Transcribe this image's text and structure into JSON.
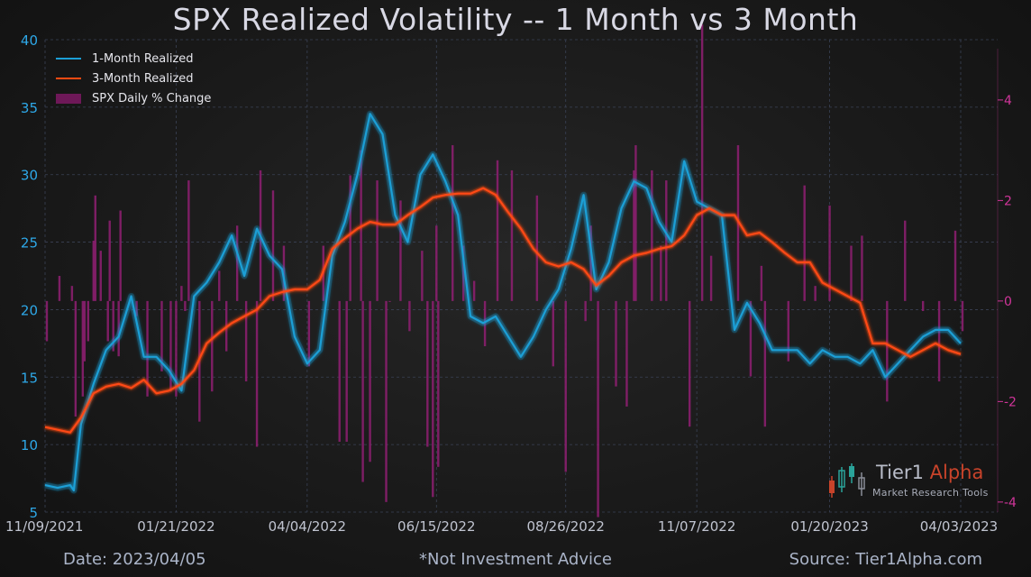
{
  "header": {
    "title": "SPX Realized Volatility -- 1 Month vs 3 Month"
  },
  "footer": {
    "date": "Date: 2023/04/05",
    "note": "*Not Investment Advice",
    "source": "Source: Tier1Alpha.com"
  },
  "brand": {
    "name_part1": "Tier1",
    "name_part2": "Alpha",
    "tagline": "Market Research Tools"
  },
  "colors": {
    "one_month": "#1b9fd6",
    "three_month": "#ff4a12",
    "daily_change": "#8a1f6e",
    "left_axis": "#2ea8e8",
    "right_axis": "#d0359a"
  },
  "chart_data": {
    "type": "line",
    "title": "SPX Realized Volatility -- 1 Month vs 3 Month",
    "legend": {
      "placement": "top-left",
      "entries": [
        "1-Month Realized",
        "3-Month Realized",
        "SPX Daily % Change"
      ]
    },
    "x_tick_labels": [
      "11/09/2021",
      "01/21/2022",
      "04/04/2022",
      "06/15/2022",
      "08/26/2022",
      "11/07/2022",
      "01/20/2023",
      "04/03/2023"
    ],
    "y_left": {
      "min": 5,
      "max": 40,
      "ticks": [
        "5",
        "10",
        "15",
        "20",
        "25",
        "30",
        "35",
        "40"
      ]
    },
    "y_right": {
      "min": -4.2,
      "max": 5.2,
      "ticks": [
        "-4",
        "-2",
        "0",
        "2",
        "4"
      ]
    },
    "grid": true,
    "series": [
      {
        "name": "1-Month Realized",
        "axis": "left",
        "x": [
          "2021-11-09",
          "2021-11-16",
          "2021-11-23",
          "2021-11-25",
          "2021-11-29",
          "2021-12-06",
          "2021-12-13",
          "2021-12-20",
          "2021-12-27",
          "2022-01-03",
          "2022-01-10",
          "2022-01-17",
          "2022-01-24",
          "2022-01-31",
          "2022-02-07",
          "2022-02-14",
          "2022-02-21",
          "2022-02-28",
          "2022-03-07",
          "2022-03-14",
          "2022-03-21",
          "2022-03-28",
          "2022-04-04",
          "2022-04-11",
          "2022-04-18",
          "2022-04-25",
          "2022-05-02",
          "2022-05-09",
          "2022-05-16",
          "2022-05-23",
          "2022-05-30",
          "2022-06-06",
          "2022-06-13",
          "2022-06-20",
          "2022-06-27",
          "2022-07-04",
          "2022-07-11",
          "2022-07-18",
          "2022-07-25",
          "2022-08-01",
          "2022-08-08",
          "2022-08-15",
          "2022-08-22",
          "2022-08-29",
          "2022-09-05",
          "2022-09-12",
          "2022-09-19",
          "2022-09-26",
          "2022-10-03",
          "2022-10-10",
          "2022-10-17",
          "2022-10-24",
          "2022-10-31",
          "2022-11-07",
          "2022-11-14",
          "2022-11-21",
          "2022-11-28",
          "2022-12-05",
          "2022-12-12",
          "2022-12-19",
          "2022-12-26",
          "2023-01-02",
          "2023-01-09",
          "2023-01-16",
          "2023-01-23",
          "2023-01-30",
          "2023-02-06",
          "2023-02-13",
          "2023-02-20",
          "2023-02-27",
          "2023-03-06",
          "2023-03-13",
          "2023-03-20",
          "2023-03-27",
          "2023-04-03"
        ],
        "y": [
          7.0,
          6.8,
          7.0,
          6.6,
          11.5,
          14.5,
          17.0,
          18.0,
          21.0,
          16.5,
          16.5,
          15.5,
          14.0,
          21.0,
          22.0,
          23.5,
          25.5,
          22.5,
          26.0,
          24.0,
          23.0,
          18.0,
          16.0,
          17.0,
          24.0,
          26.5,
          30.0,
          34.5,
          33.0,
          27.0,
          25.0,
          30.0,
          31.5,
          29.5,
          27.0,
          19.5,
          19.0,
          19.5,
          18.0,
          16.5,
          18.0,
          20.0,
          21.5,
          24.5,
          28.5,
          21.5,
          23.5,
          27.5,
          29.5,
          29.0,
          26.5,
          25.0,
          31.0,
          28.0,
          27.5,
          27.0,
          18.5,
          20.5,
          19.0,
          17.0,
          17.0,
          17.0,
          16.0,
          17.0,
          16.5,
          16.5,
          16.0,
          17.0,
          15.0,
          16.0,
          17.0,
          18.0,
          18.5,
          18.5,
          17.5
        ]
      },
      {
        "name": "3-Month Realized",
        "axis": "left",
        "x": [
          "2021-11-09",
          "2021-11-16",
          "2021-11-23",
          "2021-11-29",
          "2021-12-06",
          "2021-12-13",
          "2021-12-20",
          "2021-12-27",
          "2022-01-03",
          "2022-01-10",
          "2022-01-17",
          "2022-01-24",
          "2022-01-31",
          "2022-02-07",
          "2022-02-14",
          "2022-02-21",
          "2022-02-28",
          "2022-03-07",
          "2022-03-14",
          "2022-03-21",
          "2022-03-28",
          "2022-04-04",
          "2022-04-11",
          "2022-04-18",
          "2022-04-25",
          "2022-05-02",
          "2022-05-09",
          "2022-05-16",
          "2022-05-23",
          "2022-05-30",
          "2022-06-06",
          "2022-06-13",
          "2022-06-20",
          "2022-06-27",
          "2022-07-04",
          "2022-07-11",
          "2022-07-18",
          "2022-07-25",
          "2022-08-01",
          "2022-08-08",
          "2022-08-15",
          "2022-08-22",
          "2022-08-29",
          "2022-09-05",
          "2022-09-12",
          "2022-09-19",
          "2022-09-26",
          "2022-10-03",
          "2022-10-10",
          "2022-10-17",
          "2022-10-24",
          "2022-10-31",
          "2022-11-07",
          "2022-11-14",
          "2022-11-21",
          "2022-11-28",
          "2022-12-05",
          "2022-12-12",
          "2022-12-19",
          "2022-12-26",
          "2023-01-02",
          "2023-01-09",
          "2023-01-16",
          "2023-01-23",
          "2023-01-30",
          "2023-02-06",
          "2023-02-13",
          "2023-02-20",
          "2023-02-27",
          "2023-03-06",
          "2023-03-13",
          "2023-03-20",
          "2023-03-27",
          "2023-04-03"
        ],
        "y": [
          11.3,
          11.1,
          10.9,
          12.0,
          13.8,
          14.3,
          14.5,
          14.2,
          14.8,
          13.8,
          14.0,
          14.5,
          15.5,
          17.5,
          18.3,
          19.0,
          19.5,
          20.0,
          21.0,
          21.3,
          21.5,
          21.5,
          22.2,
          24.5,
          25.3,
          26.0,
          26.5,
          26.3,
          26.3,
          27.0,
          27.6,
          28.3,
          28.5,
          28.6,
          28.6,
          29.0,
          28.5,
          27.2,
          26.0,
          24.5,
          23.5,
          23.2,
          23.5,
          23.0,
          21.8,
          22.5,
          23.5,
          24.0,
          24.2,
          24.5,
          24.7,
          25.5,
          27.0,
          27.5,
          27.0,
          27.0,
          25.5,
          25.7,
          25.0,
          24.2,
          23.5,
          23.5,
          22.0,
          21.5,
          21.0,
          20.5,
          17.5,
          17.5,
          17.0,
          16.5,
          17.0,
          17.5,
          17.0,
          16.7
        ]
      },
      {
        "name": "SPX Daily % Change",
        "axis": "right",
        "type": "bar",
        "x": [
          "2021-11-10",
          "2021-11-17",
          "2021-11-24",
          "2021-11-26",
          "2021-11-30",
          "2021-12-01",
          "2021-12-03",
          "2021-12-06",
          "2021-12-07",
          "2021-12-10",
          "2021-12-14",
          "2021-12-15",
          "2021-12-17",
          "2021-12-20",
          "2021-12-21",
          "2021-12-30",
          "2022-01-05",
          "2022-01-13",
          "2022-01-18",
          "2022-01-21",
          "2022-01-24",
          "2022-01-26",
          "2022-01-28",
          "2022-02-03",
          "2022-02-10",
          "2022-02-14",
          "2022-02-18",
          "2022-02-24",
          "2022-03-01",
          "2022-03-07",
          "2022-03-09",
          "2022-03-16",
          "2022-03-22",
          "2022-04-05",
          "2022-04-13",
          "2022-04-22",
          "2022-04-26",
          "2022-04-28",
          "2022-05-04",
          "2022-05-05",
          "2022-05-09",
          "2022-05-13",
          "2022-05-18",
          "2022-05-20",
          "2022-05-26",
          "2022-05-31",
          "2022-06-07",
          "2022-06-10",
          "2022-06-13",
          "2022-06-15",
          "2022-06-16",
          "2022-06-24",
          "2022-06-30",
          "2022-07-06",
          "2022-07-12",
          "2022-07-19",
          "2022-07-27",
          "2022-08-10",
          "2022-08-19",
          "2022-08-26",
          "2022-09-06",
          "2022-09-09",
          "2022-09-13",
          "2022-09-23",
          "2022-09-29",
          "2022-10-03",
          "2022-10-04",
          "2022-10-13",
          "2022-10-18",
          "2022-10-21",
          "2022-11-03",
          "2022-11-10",
          "2022-11-15",
          "2022-11-30",
          "2022-12-07",
          "2022-12-13",
          "2022-12-15",
          "2022-12-28",
          "2023-01-06",
          "2023-01-12",
          "2023-01-20",
          "2023-02-01",
          "2023-02-07",
          "2023-02-21",
          "2023-03-03",
          "2023-03-13",
          "2023-03-22",
          "2023-03-31",
          "2023-04-04"
        ],
        "y": [
          -0.8,
          0.5,
          0.3,
          -2.3,
          -1.9,
          -1.2,
          -0.8,
          1.2,
          2.1,
          1.0,
          -0.8,
          1.6,
          -1.0,
          -1.1,
          1.8,
          -0.3,
          -1.9,
          -1.4,
          -1.8,
          -1.9,
          0.3,
          -0.2,
          2.4,
          -2.4,
          -1.8,
          0.6,
          -1.0,
          1.5,
          -1.6,
          -2.9,
          2.6,
          2.2,
          1.1,
          -1.3,
          1.1,
          -2.8,
          -2.8,
          2.5,
          3.0,
          -3.6,
          -3.2,
          2.4,
          -4.0,
          0.0,
          2.0,
          -0.6,
          1.0,
          -2.9,
          -3.9,
          1.5,
          -3.3,
          3.1,
          1.1,
          0.4,
          -0.9,
          2.8,
          2.6,
          2.1,
          -1.3,
          -3.4,
          -0.4,
          1.5,
          -4.3,
          -1.7,
          -2.1,
          2.6,
          3.1,
          2.6,
          1.1,
          2.4,
          -2.5,
          5.5,
          0.9,
          3.1,
          -1.5,
          0.7,
          -2.5,
          -1.2,
          2.3,
          0.3,
          1.9,
          1.1,
          1.3,
          -2.0,
          1.6,
          -0.2,
          -1.6,
          1.4,
          -0.6
        ]
      }
    ]
  }
}
